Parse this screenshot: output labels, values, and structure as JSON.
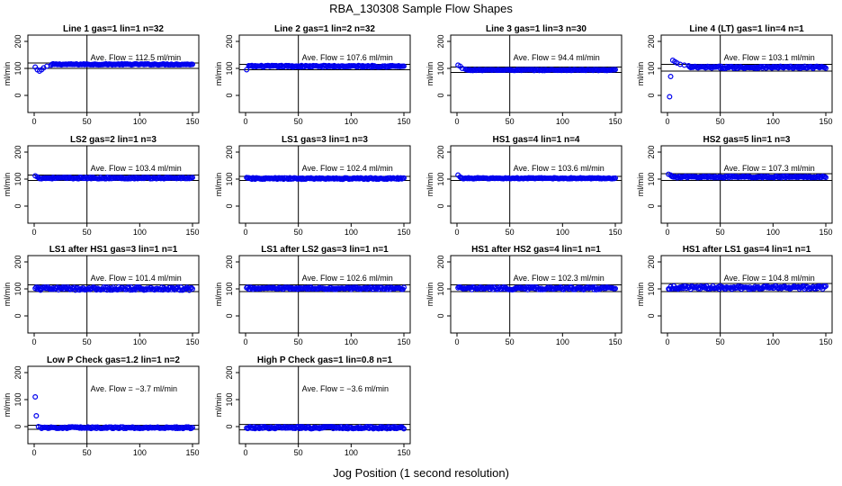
{
  "figure": {
    "title": "RBA_130308  Sample Flow Shapes",
    "xlabel": "Jog Position (1 second resolution)"
  },
  "colors": {
    "points": "#0000ee",
    "axis": "#000000"
  },
  "chart_data": [
    {
      "type": "scatter",
      "title": "Line 1 gas=1 lin=1 n=32",
      "ylabel": "ml/min",
      "xlim": [
        0,
        150
      ],
      "ylim": [
        -50,
        210
      ],
      "xticks": [
        0,
        50,
        100,
        150
      ],
      "yticks": [
        0,
        100,
        200
      ],
      "mean": 112.5,
      "annotation": "Ave. Flow = 112.5  ml/min",
      "vline": 50,
      "hlines": [
        100,
        120
      ],
      "pattern": "start_dip",
      "level": 115,
      "noise": 2,
      "start_points": [
        [
          1,
          105
        ],
        [
          3,
          95
        ],
        [
          5,
          90
        ],
        [
          7,
          95
        ],
        [
          9,
          102
        ],
        [
          12,
          108
        ],
        [
          16,
          112
        ]
      ]
    },
    {
      "type": "scatter",
      "title": "Line 2 gas=1 lin=2 n=32",
      "ylabel": "ml/min",
      "xlim": [
        0,
        150
      ],
      "ylim": [
        -50,
        210
      ],
      "xticks": [
        0,
        50,
        100,
        150
      ],
      "yticks": [
        0,
        100,
        200
      ],
      "mean": 107.6,
      "annotation": "Ave. Flow = 107.6  ml/min",
      "vline": 50,
      "hlines": [
        95,
        115
      ],
      "pattern": "flat",
      "level": 108,
      "noise": 3,
      "start_points": [
        [
          1,
          95
        ],
        [
          3,
          110
        ]
      ]
    },
    {
      "type": "scatter",
      "title": "Line 3 gas=1 lin=3 n=30",
      "ylabel": "ml/min",
      "xlim": [
        0,
        150
      ],
      "ylim": [
        -50,
        210
      ],
      "xticks": [
        0,
        50,
        100,
        150
      ],
      "yticks": [
        0,
        100,
        200
      ],
      "mean": 94.4,
      "annotation": "Ave. Flow = 94.4  ml/min",
      "vline": 50,
      "hlines": [
        85,
        105
      ],
      "pattern": "start_hump",
      "level": 94,
      "noise": 2,
      "start_points": [
        [
          1,
          112
        ],
        [
          3,
          108
        ],
        [
          5,
          100
        ],
        [
          8,
          97
        ]
      ]
    },
    {
      "type": "scatter",
      "title": "Line 4 (LT) gas=1 lin=4 n=1",
      "ylabel": "ml/min",
      "xlim": [
        0,
        150
      ],
      "ylim": [
        -50,
        210
      ],
      "xticks": [
        0,
        50,
        100,
        150
      ],
      "yticks": [
        0,
        100,
        200
      ],
      "mean": 103.1,
      "annotation": "Ave. Flow = 103.1  ml/min",
      "vline": 50,
      "hlines": [
        90,
        115
      ],
      "pattern": "outliers",
      "level": 104,
      "noise": 4,
      "start_points": [
        [
          2,
          -5
        ],
        [
          3,
          70
        ],
        [
          5,
          130
        ],
        [
          7,
          125
        ],
        [
          9,
          120
        ],
        [
          12,
          115
        ],
        [
          16,
          112
        ],
        [
          20,
          110
        ]
      ]
    },
    {
      "type": "scatter",
      "title": "LS2 gas=2 lin=1 n=3",
      "ylabel": "ml/min",
      "xlim": [
        0,
        150
      ],
      "ylim": [
        -50,
        210
      ],
      "xticks": [
        0,
        50,
        100,
        150
      ],
      "yticks": [
        0,
        100,
        200
      ],
      "mean": 103.4,
      "annotation": "Ave. Flow = 103.4  ml/min",
      "vline": 50,
      "hlines": [
        95,
        115
      ],
      "pattern": "flat",
      "level": 104,
      "noise": 3,
      "start_points": [
        [
          1,
          112
        ],
        [
          3,
          108
        ]
      ]
    },
    {
      "type": "scatter",
      "title": "LS1 gas=3 lin=1 n=3",
      "ylabel": "ml/min",
      "xlim": [
        0,
        150
      ],
      "ylim": [
        -50,
        210
      ],
      "xticks": [
        0,
        50,
        100,
        150
      ],
      "yticks": [
        0,
        100,
        200
      ],
      "mean": 102.4,
      "annotation": "Ave. Flow = 102.4  ml/min",
      "vline": 50,
      "hlines": [
        95,
        110
      ],
      "pattern": "flat",
      "level": 102,
      "noise": 3,
      "start_points": [
        [
          1,
          106
        ]
      ]
    },
    {
      "type": "scatter",
      "title": "HS1 gas=4 lin=1 n=4",
      "ylabel": "ml/min",
      "xlim": [
        0,
        150
      ],
      "ylim": [
        -50,
        210
      ],
      "xticks": [
        0,
        50,
        100,
        150
      ],
      "yticks": [
        0,
        100,
        200
      ],
      "mean": 103.6,
      "annotation": "Ave. Flow = 103.6  ml/min",
      "vline": 50,
      "hlines": [
        95,
        110
      ],
      "pattern": "flat",
      "level": 103,
      "noise": 2,
      "start_points": [
        [
          1,
          115
        ],
        [
          3,
          108
        ]
      ]
    },
    {
      "type": "scatter",
      "title": "HS2 gas=5 lin=1 n=3",
      "ylabel": "ml/min",
      "xlim": [
        0,
        150
      ],
      "ylim": [
        -50,
        210
      ],
      "xticks": [
        0,
        50,
        100,
        150
      ],
      "yticks": [
        0,
        100,
        200
      ],
      "mean": 107.3,
      "annotation": "Ave. Flow = 107.3  ml/min",
      "vline": 50,
      "hlines": [
        95,
        120
      ],
      "pattern": "flat",
      "level": 108,
      "noise": 3,
      "start_points": [
        [
          1,
          118
        ],
        [
          3,
          115
        ]
      ]
    },
    {
      "type": "scatter",
      "title": "LS1 after HS1 gas=3 lin=1 n=1",
      "ylabel": "ml/min",
      "xlim": [
        0,
        150
      ],
      "ylim": [
        -50,
        210
      ],
      "xticks": [
        0,
        50,
        100,
        150
      ],
      "yticks": [
        0,
        100,
        200
      ],
      "mean": 101.4,
      "annotation": "Ave. Flow = 101.4  ml/min",
      "vline": 50,
      "hlines": [
        90,
        115
      ],
      "pattern": "flat",
      "level": 101,
      "noise": 6,
      "start_points": [
        [
          1,
          102
        ]
      ]
    },
    {
      "type": "scatter",
      "title": "LS1 after LS2 gas=3 lin=1 n=1",
      "ylabel": "ml/min",
      "xlim": [
        0,
        150
      ],
      "ylim": [
        -50,
        210
      ],
      "xticks": [
        0,
        50,
        100,
        150
      ],
      "yticks": [
        0,
        100,
        200
      ],
      "mean": 102.6,
      "annotation": "Ave. Flow = 102.6  ml/min",
      "vline": 50,
      "hlines": [
        90,
        115
      ],
      "pattern": "flat",
      "level": 102,
      "noise": 4,
      "start_points": [
        [
          1,
          104
        ]
      ]
    },
    {
      "type": "scatter",
      "title": "HS1 after HS2 gas=4 lin=1 n=1",
      "ylabel": "ml/min",
      "xlim": [
        0,
        150
      ],
      "ylim": [
        -50,
        210
      ],
      "xticks": [
        0,
        50,
        100,
        150
      ],
      "yticks": [
        0,
        100,
        200
      ],
      "mean": 102.3,
      "annotation": "Ave. Flow = 102.3  ml/min",
      "vline": 50,
      "hlines": [
        90,
        115
      ],
      "pattern": "flat",
      "level": 102,
      "noise": 5,
      "start_points": [
        [
          1,
          104
        ]
      ]
    },
    {
      "type": "scatter",
      "title": "HS1 after LS1 gas=4 lin=1 n=1",
      "ylabel": "ml/min",
      "xlim": [
        0,
        150
      ],
      "ylim": [
        -50,
        210
      ],
      "xticks": [
        0,
        50,
        100,
        150
      ],
      "yticks": [
        0,
        100,
        200
      ],
      "mean": 104.8,
      "annotation": "Ave. Flow = 104.8  ml/min",
      "vline": 50,
      "hlines": [
        90,
        120
      ],
      "pattern": "flat",
      "level": 105,
      "noise": 6,
      "start_points": [
        [
          1,
          100
        ]
      ]
    },
    {
      "type": "scatter",
      "title": "Low P Check gas=1.2 lin=1 n=2",
      "ylabel": "ml/min",
      "xlim": [
        0,
        150
      ],
      "ylim": [
        -50,
        210
      ],
      "xticks": [
        0,
        50,
        100,
        150
      ],
      "yticks": [
        0,
        100,
        200
      ],
      "mean": -3.7,
      "annotation": "Ave. Flow = −3.7  ml/min",
      "vline": 50,
      "hlines": [
        -10,
        5
      ],
      "pattern": "outliers",
      "level": -4,
      "noise": 3,
      "start_points": [
        [
          1,
          110
        ],
        [
          2,
          40
        ],
        [
          4,
          0
        ],
        [
          6,
          -2
        ]
      ]
    },
    {
      "type": "scatter",
      "title": "High P Check gas=1 lin=0.8 n=1",
      "ylabel": "ml/min",
      "xlim": [
        0,
        150
      ],
      "ylim": [
        -50,
        210
      ],
      "xticks": [
        0,
        50,
        100,
        150
      ],
      "yticks": [
        0,
        100,
        200
      ],
      "mean": -3.6,
      "annotation": "Ave. Flow = −3.6  ml/min",
      "vline": 50,
      "hlines": [
        -12,
        8
      ],
      "pattern": "flat",
      "level": -4,
      "noise": 4,
      "start_points": [
        [
          1,
          -5
        ]
      ]
    }
  ]
}
